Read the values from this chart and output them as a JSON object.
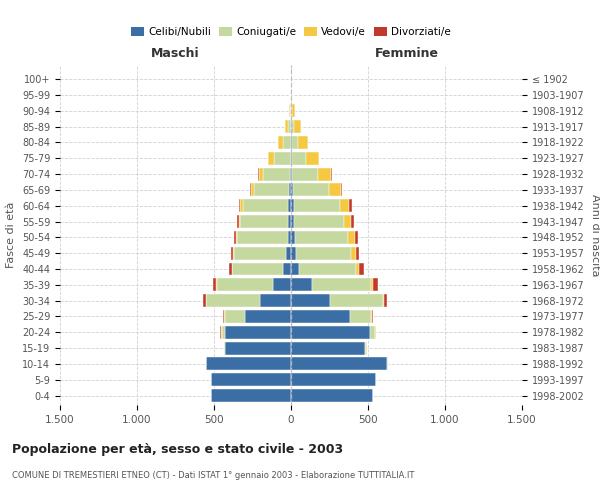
{
  "age_groups": [
    "0-4",
    "5-9",
    "10-14",
    "15-19",
    "20-24",
    "25-29",
    "30-34",
    "35-39",
    "40-44",
    "45-49",
    "50-54",
    "55-59",
    "60-64",
    "65-69",
    "70-74",
    "75-79",
    "80-84",
    "85-89",
    "90-94",
    "95-99",
    "100+"
  ],
  "birth_years": [
    "1998-2002",
    "1993-1997",
    "1988-1992",
    "1983-1987",
    "1978-1982",
    "1973-1977",
    "1968-1972",
    "1963-1967",
    "1958-1962",
    "1953-1957",
    "1948-1952",
    "1943-1947",
    "1938-1942",
    "1933-1937",
    "1928-1932",
    "1923-1927",
    "1918-1922",
    "1913-1917",
    "1908-1912",
    "1903-1907",
    "≤ 1902"
  ],
  "males": {
    "celibi": [
      520,
      520,
      550,
      430,
      430,
      300,
      200,
      120,
      50,
      30,
      20,
      20,
      20,
      10,
      5,
      2,
      1,
      1,
      1,
      0,
      0
    ],
    "coniugati": [
      0,
      0,
      0,
      5,
      20,
      130,
      350,
      360,
      330,
      340,
      330,
      310,
      290,
      230,
      175,
      110,
      50,
      20,
      5,
      0,
      0
    ],
    "vedovi": [
      0,
      0,
      0,
      0,
      5,
      5,
      5,
      5,
      5,
      5,
      10,
      10,
      20,
      20,
      30,
      35,
      35,
      20,
      8,
      0,
      0
    ],
    "divorziati": [
      0,
      0,
      0,
      0,
      5,
      5,
      15,
      20,
      20,
      15,
      10,
      10,
      8,
      5,
      5,
      0,
      0,
      0,
      0,
      0,
      0
    ]
  },
  "females": {
    "nubili": [
      530,
      550,
      625,
      480,
      515,
      385,
      255,
      135,
      55,
      35,
      28,
      22,
      18,
      12,
      8,
      5,
      4,
      3,
      2,
      1,
      1
    ],
    "coniugate": [
      0,
      0,
      5,
      10,
      30,
      135,
      345,
      385,
      365,
      355,
      345,
      320,
      300,
      235,
      165,
      90,
      40,
      15,
      5,
      0,
      0
    ],
    "vedove": [
      0,
      0,
      0,
      5,
      5,
      5,
      5,
      12,
      22,
      30,
      40,
      50,
      60,
      80,
      85,
      90,
      65,
      45,
      20,
      3,
      0
    ],
    "divorziate": [
      0,
      0,
      0,
      0,
      5,
      10,
      20,
      30,
      30,
      22,
      20,
      15,
      15,
      5,
      5,
      0,
      0,
      0,
      0,
      0,
      0
    ]
  },
  "colors": {
    "celibi_nubili": "#3b6ea5",
    "coniugati": "#c5d8a0",
    "vedovi": "#f5c842",
    "divorziati": "#c0392b"
  },
  "title": "Popolazione per età, sesso e stato civile - 2003",
  "subtitle": "COMUNE DI TREMESTIERI ETNEO (CT) - Dati ISTAT 1° gennaio 2003 - Elaborazione TUTTITALIA.IT",
  "label_maschi": "Maschi",
  "label_femmine": "Femmine",
  "ylabel_left": "Fasce di età",
  "ylabel_right": "Anni di nascita",
  "legend_labels": [
    "Celibi/Nubili",
    "Coniugati/e",
    "Vedovi/e",
    "Divorziati/e"
  ],
  "xlim": 1500,
  "bg_color": "#ffffff",
  "grid_color": "#cccccc"
}
